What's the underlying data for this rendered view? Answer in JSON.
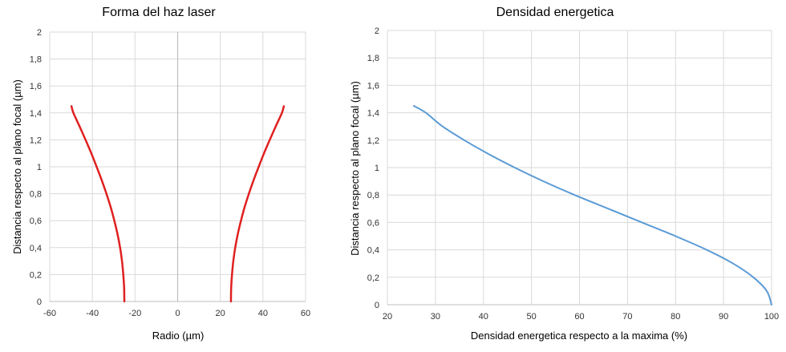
{
  "chart_data": [
    {
      "type": "line",
      "title": "Forma del haz laser",
      "xlabel": "Radio (µm)",
      "ylabel": "Distancia respecto al plano focal (µm)",
      "xlim": [
        -60,
        60
      ],
      "ylim": [
        0,
        2
      ],
      "xticks": [
        "-60",
        "-40",
        "-20",
        "0",
        "20",
        "40",
        "60"
      ],
      "yticks": [
        "0",
        "0,2",
        "0,4",
        "0,6",
        "0,8",
        "1",
        "1,2",
        "1,4",
        "1,6",
        "1,8",
        "2"
      ],
      "grid": true,
      "color": "#e02020",
      "series": [
        {
          "x": [
            -25,
            -25.1,
            -25.5,
            -26.1,
            -27.0,
            -28.2,
            -29.7,
            -31.4,
            -33.4,
            -35.6,
            -38.0,
            -40.5,
            -43.2,
            -46.0,
            -48.9,
            -49.8
          ],
          "y": [
            0,
            0.1,
            0.2,
            0.3,
            0.4,
            0.5,
            0.6,
            0.7,
            0.8,
            0.9,
            1.0,
            1.1,
            1.2,
            1.3,
            1.4,
            1.45
          ]
        },
        {
          "x": [
            25,
            25.1,
            25.5,
            26.1,
            27.0,
            28.2,
            29.7,
            31.4,
            33.4,
            35.6,
            38.0,
            40.5,
            43.2,
            46.0,
            48.9,
            49.8
          ],
          "y": [
            0,
            0.1,
            0.2,
            0.3,
            0.4,
            0.5,
            0.6,
            0.7,
            0.8,
            0.9,
            1.0,
            1.1,
            1.2,
            1.3,
            1.4,
            1.45
          ]
        }
      ]
    },
    {
      "type": "line",
      "title": "Densidad energetica",
      "xlabel": "Densidad energetica respecto a la maxima (%)",
      "ylabel": "Distancia respecto al plano focal (µm)",
      "xlim": [
        20,
        100
      ],
      "ylim": [
        0,
        2
      ],
      "xticks": [
        "20",
        "30",
        "40",
        "50",
        "60",
        "70",
        "80",
        "90",
        "100"
      ],
      "yticks": [
        "0",
        "0,2",
        "0,4",
        "0,6",
        "0,8",
        "1",
        "1,2",
        "1,4",
        "1,6",
        "1,8",
        "2"
      ],
      "grid": true,
      "color": "#5b9bd5",
      "series": [
        {
          "x": [
            100,
            99.0,
            96.2,
            92.0,
            86.5,
            80.0,
            73.0,
            66.0,
            59.0,
            52.5,
            46.5,
            41.0,
            36.0,
            31.5,
            28.0,
            25.5
          ],
          "y": [
            0,
            0.1,
            0.2,
            0.3,
            0.4,
            0.5,
            0.6,
            0.7,
            0.8,
            0.9,
            1.0,
            1.1,
            1.2,
            1.3,
            1.4,
            1.45
          ]
        }
      ]
    }
  ]
}
